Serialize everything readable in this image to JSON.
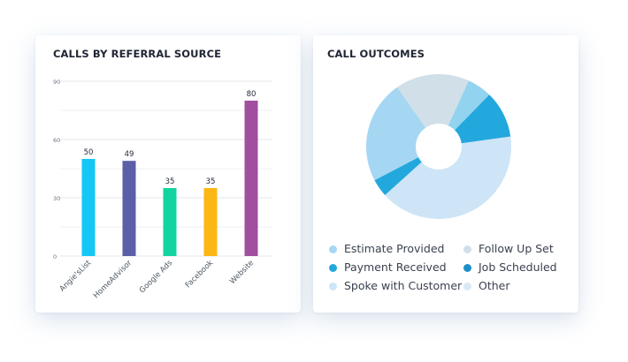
{
  "bar_card": {
    "title": "CALLS BY REFERRAL SOURCE"
  },
  "donut_card": {
    "title": "CALL OUTCOMES"
  },
  "chart_data": [
    {
      "type": "bar",
      "title": "CALLS BY REFERRAL SOURCE",
      "categories": [
        "Angie'sList",
        "HomeAdvisor",
        "Google Ads",
        "Facebook",
        "Website"
      ],
      "values": [
        50,
        49,
        35,
        35,
        80
      ],
      "value_labels": [
        "50",
        "49",
        "35",
        "35",
        "80"
      ],
      "colors": [
        "#14c7f5",
        "#5a5fa8",
        "#12d4a0",
        "#fbb714",
        "#a04e9f"
      ],
      "ylim": [
        0,
        90
      ],
      "yticks": [
        0,
        30,
        60,
        90
      ],
      "ytick_labels": [
        "0",
        "30",
        "60",
        "90"
      ],
      "grid": true,
      "xlabel": "",
      "ylabel": ""
    },
    {
      "type": "pie",
      "title": "CALL OUTCOMES",
      "donut": true,
      "slices": [
        {
          "label": "Follow Up Set",
          "value": 16.5,
          "color": "#d1dfe8"
        },
        {
          "label": "",
          "value": 5.5,
          "color": "#92d3ef"
        },
        {
          "label": "Job Scheduled",
          "value": 10.5,
          "color": "#23a8de"
        },
        {
          "label": "Spoke with Customer",
          "value": 40.5,
          "color": "#cde5f6"
        },
        {
          "label": "Payment Received",
          "value": 4.0,
          "color": "#23a8de"
        },
        {
          "label": "Estimate Provided",
          "value": 23.0,
          "color": "#a5d7f3"
        }
      ],
      "legend": [
        {
          "label": "Estimate Provided",
          "color": "#a5d7f3"
        },
        {
          "label": "Follow Up Set",
          "color": "#d1dfe8"
        },
        {
          "label": "Payment Received",
          "color": "#23a8de"
        },
        {
          "label": "Job Scheduled",
          "color": "#1c8fc7"
        },
        {
          "label": "Spoke with Customer",
          "color": "#cde5f6"
        },
        {
          "label": "Other",
          "color": "#d9eaf6"
        }
      ],
      "legend_position": "bottom"
    }
  ]
}
